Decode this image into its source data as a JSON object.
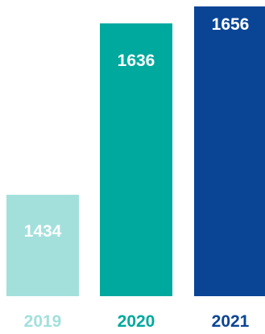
{
  "chart_data": {
    "type": "bar",
    "categories": [
      "2019",
      "2020",
      "2021"
    ],
    "values": [
      1434,
      1636,
      1656
    ],
    "value_labels": [
      "1434",
      "1636",
      "1656"
    ],
    "colors": [
      "#a3e0dc",
      "#00a99d",
      "#0a4595"
    ],
    "title": "",
    "xlabel": "",
    "ylabel": "",
    "grid": false,
    "legend": "none"
  }
}
